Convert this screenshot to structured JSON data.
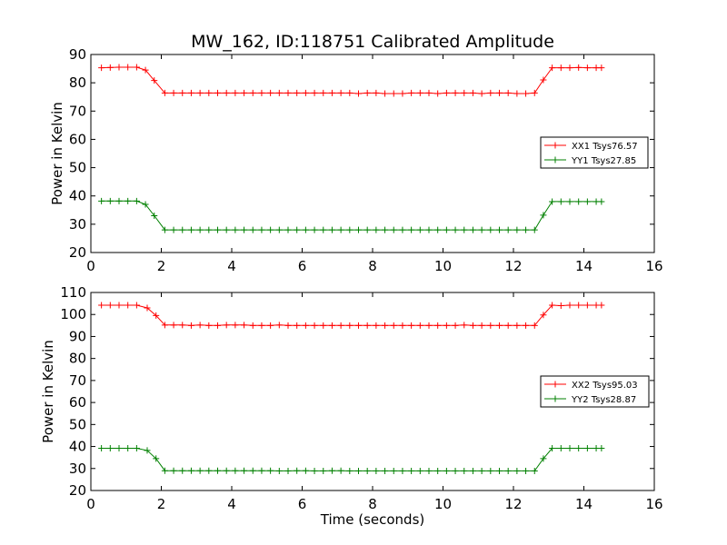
{
  "chart_data": [
    {
      "type": "line",
      "title": "MW_162, ID:118751 Calibrated Amplitude",
      "xlabel": "",
      "ylabel": "Power in Kelvin",
      "xlim": [
        0,
        16
      ],
      "ylim": [
        20,
        90
      ],
      "xticks": [
        "0",
        "2",
        "4",
        "6",
        "8",
        "10",
        "12",
        "14",
        "16"
      ],
      "yticks": [
        "20",
        "30",
        "40",
        "50",
        "60",
        "70",
        "80",
        "90"
      ],
      "legend_position": "right",
      "grid": false,
      "series": [
        {
          "name": "XX1 Tsys76.57",
          "color": "#ff0000",
          "x": [
            0.3,
            0.55,
            0.8,
            1.05,
            1.3,
            1.55,
            1.8,
            2.1,
            2.35,
            2.6,
            2.85,
            3.1,
            3.35,
            3.6,
            3.85,
            4.1,
            4.35,
            4.6,
            4.85,
            5.1,
            5.35,
            5.6,
            5.85,
            6.1,
            6.35,
            6.6,
            6.85,
            7.1,
            7.35,
            7.6,
            7.85,
            8.1,
            8.35,
            8.6,
            8.85,
            9.1,
            9.35,
            9.6,
            9.85,
            10.1,
            10.35,
            10.6,
            10.85,
            11.1,
            11.35,
            11.6,
            11.85,
            12.1,
            12.35,
            12.6,
            12.85,
            13.1,
            13.35,
            13.6,
            13.85,
            14.1,
            14.35,
            14.5
          ],
          "y": [
            85.3,
            85.4,
            85.5,
            85.5,
            85.5,
            84.5,
            80.8,
            76.4,
            76.4,
            76.4,
            76.4,
            76.4,
            76.4,
            76.4,
            76.4,
            76.4,
            76.4,
            76.4,
            76.4,
            76.4,
            76.4,
            76.4,
            76.4,
            76.4,
            76.4,
            76.4,
            76.4,
            76.4,
            76.4,
            76.2,
            76.4,
            76.4,
            76.2,
            76.2,
            76.2,
            76.4,
            76.4,
            76.4,
            76.2,
            76.4,
            76.4,
            76.4,
            76.4,
            76.2,
            76.4,
            76.4,
            76.4,
            76.2,
            76.2,
            76.4,
            81.0,
            85.3,
            85.3,
            85.3,
            85.4,
            85.3,
            85.3,
            85.3
          ]
        },
        {
          "name": "YY1 Tsys27.85",
          "color": "#008000",
          "x": [
            0.3,
            0.55,
            0.8,
            1.05,
            1.3,
            1.55,
            1.8,
            2.1,
            2.35,
            2.6,
            2.85,
            3.1,
            3.35,
            3.6,
            3.85,
            4.1,
            4.35,
            4.6,
            4.85,
            5.1,
            5.35,
            5.6,
            5.85,
            6.1,
            6.35,
            6.6,
            6.85,
            7.1,
            7.35,
            7.6,
            7.85,
            8.1,
            8.35,
            8.6,
            8.85,
            9.1,
            9.35,
            9.6,
            9.85,
            10.1,
            10.35,
            10.6,
            10.85,
            11.1,
            11.35,
            11.6,
            11.85,
            12.1,
            12.35,
            12.6,
            12.85,
            13.1,
            13.35,
            13.6,
            13.85,
            14.1,
            14.35,
            14.5
          ],
          "y": [
            38.2,
            38.2,
            38.2,
            38.2,
            38.2,
            37.0,
            33.0,
            28.0,
            28.0,
            28.0,
            28.0,
            28.0,
            28.0,
            28.0,
            28.0,
            28.0,
            28.0,
            28.0,
            28.0,
            28.0,
            28.0,
            28.0,
            28.0,
            28.0,
            28.0,
            28.0,
            28.0,
            28.0,
            28.0,
            28.0,
            28.0,
            28.0,
            28.0,
            28.0,
            28.0,
            28.0,
            28.0,
            28.0,
            28.0,
            28.0,
            28.0,
            28.0,
            28.0,
            28.0,
            28.0,
            28.0,
            28.0,
            28.0,
            28.0,
            28.0,
            33.2,
            38.0,
            38.0,
            38.0,
            38.0,
            38.0,
            38.0,
            38.0
          ]
        }
      ]
    },
    {
      "type": "line",
      "title": "",
      "xlabel": "Time (seconds)",
      "ylabel": "Power in Kelvin",
      "xlim": [
        0,
        16
      ],
      "ylim": [
        20,
        110
      ],
      "xticks": [
        "0",
        "2",
        "4",
        "6",
        "8",
        "10",
        "12",
        "14",
        "16"
      ],
      "yticks": [
        "20",
        "30",
        "40",
        "50",
        "60",
        "70",
        "80",
        "90",
        "100",
        "110"
      ],
      "legend_position": "right",
      "grid": false,
      "series": [
        {
          "name": "XX2 Tsys95.03",
          "color": "#ff0000",
          "x": [
            0.3,
            0.55,
            0.8,
            1.05,
            1.3,
            1.6,
            1.85,
            2.1,
            2.35,
            2.6,
            2.85,
            3.1,
            3.35,
            3.6,
            3.85,
            4.1,
            4.35,
            4.6,
            4.85,
            5.1,
            5.35,
            5.6,
            5.85,
            6.1,
            6.35,
            6.6,
            6.85,
            7.1,
            7.35,
            7.6,
            7.85,
            8.1,
            8.35,
            8.6,
            8.85,
            9.1,
            9.35,
            9.6,
            9.85,
            10.1,
            10.35,
            10.6,
            10.85,
            11.1,
            11.35,
            11.6,
            11.85,
            12.1,
            12.35,
            12.6,
            12.85,
            13.1,
            13.35,
            13.6,
            13.85,
            14.1,
            14.35,
            14.5
          ],
          "y": [
            104.2,
            104.2,
            104.2,
            104.2,
            104.2,
            103.0,
            99.5,
            95.2,
            95.2,
            95.2,
            95.0,
            95.2,
            95.0,
            95.0,
            95.2,
            95.2,
            95.2,
            95.0,
            95.0,
            95.0,
            95.2,
            95.0,
            95.0,
            95.0,
            95.0,
            95.0,
            95.0,
            95.0,
            95.0,
            95.0,
            95.0,
            95.0,
            95.0,
            95.0,
            95.0,
            95.0,
            95.0,
            95.0,
            95.0,
            95.0,
            95.0,
            95.2,
            95.0,
            95.0,
            95.0,
            95.0,
            95.0,
            95.0,
            95.0,
            95.0,
            99.8,
            104.2,
            104.0,
            104.2,
            104.2,
            104.2,
            104.2,
            104.2
          ]
        },
        {
          "name": "YY2 Tsys28.87",
          "color": "#008000",
          "x": [
            0.3,
            0.55,
            0.8,
            1.05,
            1.3,
            1.6,
            1.85,
            2.1,
            2.35,
            2.6,
            2.85,
            3.1,
            3.35,
            3.6,
            3.85,
            4.1,
            4.35,
            4.6,
            4.85,
            5.1,
            5.35,
            5.6,
            5.85,
            6.1,
            6.35,
            6.6,
            6.85,
            7.1,
            7.35,
            7.6,
            7.85,
            8.1,
            8.35,
            8.6,
            8.85,
            9.1,
            9.35,
            9.6,
            9.85,
            10.1,
            10.35,
            10.6,
            10.85,
            11.1,
            11.35,
            11.6,
            11.85,
            12.1,
            12.35,
            12.6,
            12.85,
            13.1,
            13.35,
            13.6,
            13.85,
            14.1,
            14.35,
            14.5
          ],
          "y": [
            39.2,
            39.2,
            39.2,
            39.2,
            39.2,
            38.2,
            34.5,
            29.0,
            29.0,
            29.0,
            29.0,
            29.0,
            29.0,
            29.0,
            29.0,
            29.0,
            29.0,
            29.0,
            29.0,
            29.0,
            28.9,
            28.9,
            29.0,
            29.0,
            28.9,
            28.9,
            29.0,
            29.0,
            28.9,
            28.9,
            28.9,
            28.9,
            28.9,
            28.9,
            28.9,
            28.9,
            28.9,
            28.9,
            28.9,
            28.9,
            28.9,
            28.9,
            28.9,
            28.9,
            28.9,
            28.9,
            28.9,
            28.9,
            28.9,
            28.9,
            34.5,
            39.2,
            39.2,
            39.2,
            39.2,
            39.2,
            39.2,
            39.2
          ]
        }
      ]
    }
  ]
}
